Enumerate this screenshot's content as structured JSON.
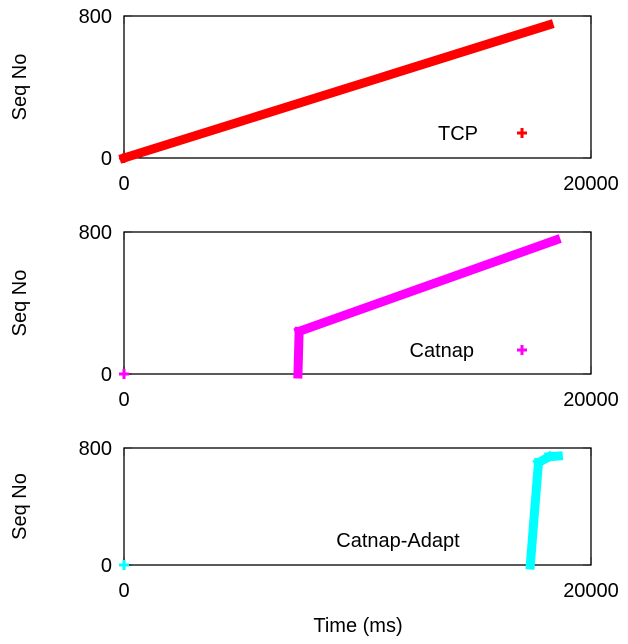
{
  "xlabel": "Time (ms)",
  "chart_data": [
    {
      "type": "scatter",
      "ylabel": "Seq No",
      "xlim": [
        0,
        20000
      ],
      "ylim": [
        0,
        800
      ],
      "x_ticks": [
        "0",
        "20000"
      ],
      "y_ticks": [
        "0",
        "800"
      ],
      "grid": false,
      "legend_position": "bottom-right",
      "series": [
        {
          "name": "TCP",
          "color": "#ff0000",
          "segments": [
            {
              "x": [
                0,
                18200
              ],
              "y": [
                0,
                750
              ]
            }
          ],
          "points": [
            {
              "x": 0,
              "y": 0
            }
          ]
        }
      ]
    },
    {
      "type": "scatter",
      "ylabel": "Seq No",
      "xlim": [
        0,
        20000
      ],
      "ylim": [
        0,
        800
      ],
      "x_ticks": [
        "0",
        "20000"
      ],
      "y_ticks": [
        "0",
        "800"
      ],
      "grid": false,
      "legend_position": "bottom-right",
      "series": [
        {
          "name": "Catnap",
          "color": "#ff00ff",
          "segments": [
            {
              "x": [
                7450,
                7500
              ],
              "y": [
                0,
                240
              ]
            },
            {
              "x": [
                7500,
                18500
              ],
              "y": [
                240,
                755
              ]
            }
          ],
          "points": [
            {
              "x": 0,
              "y": 0
            }
          ]
        }
      ]
    },
    {
      "type": "scatter",
      "ylabel": "Seq No",
      "xlim": [
        0,
        20000
      ],
      "ylim": [
        0,
        800
      ],
      "x_ticks": [
        "0",
        "20000"
      ],
      "y_ticks": [
        "0",
        "800"
      ],
      "grid": false,
      "legend_position": "bottom-center",
      "series": [
        {
          "name": "Catnap-Adapt",
          "color": "#00ffff",
          "segments": [
            {
              "x": [
                17400,
                17750
              ],
              "y": [
                0,
                700
              ]
            },
            {
              "x": [
                17750,
                18200
              ],
              "y": [
                700,
                740
              ]
            },
            {
              "x": [
                18200,
                18600
              ],
              "y": [
                740,
                745
              ]
            }
          ],
          "points": [
            {
              "x": 0,
              "y": 0
            }
          ]
        }
      ]
    }
  ]
}
